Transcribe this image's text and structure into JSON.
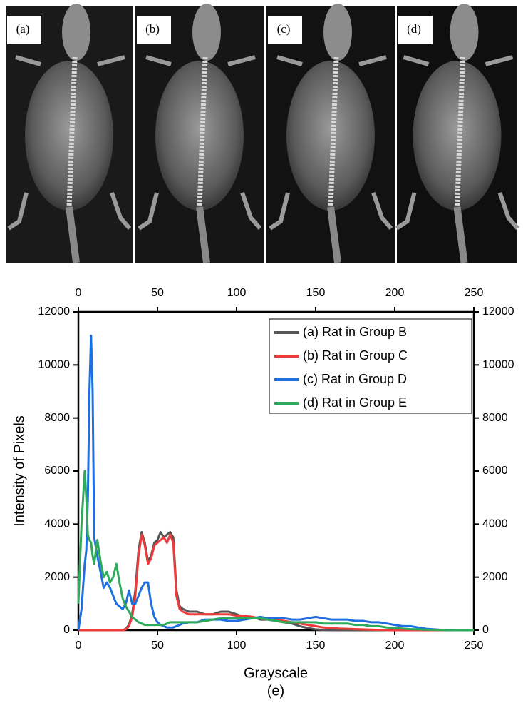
{
  "images": {
    "labels": [
      "(a)",
      "(b)",
      "(c)",
      "(d)"
    ]
  },
  "chart_data": {
    "type": "line",
    "x_label": "Grayscale",
    "y_label": "Intensity of Pixels",
    "caption": "(e)",
    "xlim": [
      0,
      250
    ],
    "xticks": [
      0,
      50,
      100,
      150,
      200,
      250
    ],
    "ylim": [
      0,
      12000
    ],
    "yticks": [
      0,
      2000,
      4000,
      6000,
      8000,
      10000,
      12000
    ],
    "legend": "upper right",
    "x": [
      0,
      2,
      4,
      5,
      6,
      7,
      8,
      9,
      10,
      12,
      14,
      16,
      18,
      20,
      22,
      24,
      26,
      28,
      30,
      32,
      34,
      36,
      38,
      40,
      42,
      44,
      46,
      48,
      50,
      52,
      54,
      56,
      58,
      60,
      62,
      64,
      66,
      70,
      75,
      80,
      85,
      90,
      95,
      100,
      105,
      110,
      115,
      120,
      125,
      130,
      135,
      140,
      145,
      150,
      155,
      160,
      165,
      170,
      175,
      180,
      185,
      190,
      195,
      200,
      205,
      210,
      215,
      220,
      225,
      230,
      240,
      250
    ],
    "series": [
      {
        "name": "(a) Rat in Group B",
        "color": "#555555",
        "values": [
          0,
          0,
          0,
          0,
          0,
          0,
          0,
          0,
          0,
          0,
          0,
          0,
          0,
          0,
          0,
          0,
          0,
          0,
          50,
          200,
          600,
          1500,
          3000,
          3700,
          3300,
          2600,
          2800,
          3300,
          3400,
          3700,
          3500,
          3600,
          3700,
          3500,
          1500,
          900,
          800,
          700,
          700,
          600,
          600,
          700,
          700,
          600,
          500,
          500,
          400,
          400,
          350,
          300,
          250,
          150,
          80,
          30,
          10,
          0,
          0,
          0,
          0,
          0,
          0,
          0,
          0,
          0,
          0,
          0,
          0,
          0,
          0,
          0,
          0,
          0
        ]
      },
      {
        "name": "(b) Rat in Group C",
        "color": "#ee3b3b",
        "values": [
          0,
          0,
          0,
          0,
          0,
          0,
          0,
          0,
          0,
          0,
          0,
          0,
          0,
          0,
          0,
          0,
          0,
          0,
          30,
          150,
          500,
          1300,
          2800,
          3600,
          3200,
          2500,
          2700,
          3200,
          3300,
          3400,
          3500,
          3300,
          3600,
          3300,
          1300,
          800,
          700,
          600,
          600,
          600,
          600,
          600,
          600,
          550,
          550,
          500,
          450,
          400,
          400,
          350,
          300,
          250,
          200,
          150,
          100,
          80,
          60,
          50,
          40,
          30,
          20,
          10,
          0,
          0,
          0,
          0,
          0,
          0,
          0,
          0,
          0,
          0
        ]
      },
      {
        "name": "(c) Rat in Group D",
        "color": "#1f6fe0",
        "values": [
          0,
          800,
          2500,
          3000,
          5000,
          9000,
          11100,
          9000,
          3500,
          2800,
          2200,
          1600,
          1800,
          1600,
          1300,
          1000,
          900,
          800,
          1000,
          1500,
          1000,
          1000,
          1300,
          1600,
          1800,
          1800,
          1000,
          500,
          300,
          200,
          150,
          100,
          100,
          100,
          150,
          200,
          250,
          300,
          300,
          400,
          400,
          400,
          350,
          350,
          400,
          450,
          500,
          450,
          450,
          450,
          400,
          400,
          450,
          500,
          450,
          400,
          400,
          400,
          350,
          350,
          300,
          300,
          250,
          200,
          150,
          150,
          100,
          50,
          30,
          10,
          0,
          0
        ]
      },
      {
        "name": "(d) Rat in Group E",
        "color": "#2faa5a",
        "values": [
          1000,
          4000,
          6000,
          5000,
          3600,
          3400,
          3300,
          2800,
          2500,
          3400,
          2600,
          2000,
          2200,
          1800,
          2000,
          2500,
          1800,
          1200,
          900,
          700,
          500,
          400,
          300,
          250,
          200,
          200,
          200,
          200,
          200,
          200,
          200,
          250,
          300,
          300,
          300,
          300,
          300,
          300,
          300,
          350,
          400,
          450,
          450,
          450,
          450,
          450,
          450,
          400,
          350,
          300,
          300,
          300,
          300,
          300,
          250,
          250,
          250,
          250,
          200,
          200,
          150,
          150,
          100,
          80,
          60,
          40,
          30,
          20,
          10,
          5,
          0,
          0
        ]
      }
    ]
  }
}
